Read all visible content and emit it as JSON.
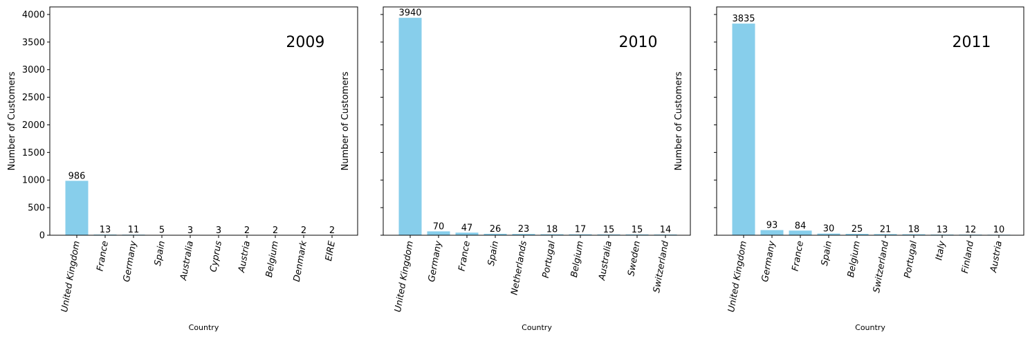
{
  "chart_data": [
    {
      "type": "bar",
      "annotation": "2009",
      "xlabel": "Country",
      "ylabel": "Number of Customers",
      "ylim": [
        0,
        4137
      ],
      "yticks": [
        0,
        500,
        1000,
        1500,
        2000,
        2500,
        3000,
        3500,
        4000
      ],
      "show_ytick_labels": true,
      "bar_color": "#87ceeb",
      "categories": [
        "United Kingdom",
        "France",
        "Germany",
        "Spain",
        "Australia",
        "Cyprus",
        "Austria",
        "Belgium",
        "Denmark",
        "EIRE"
      ],
      "values": [
        986,
        13,
        11,
        5,
        3,
        3,
        2,
        2,
        2,
        2
      ]
    },
    {
      "type": "bar",
      "annotation": "2010",
      "xlabel": "Country",
      "ylabel": "Number of Customers",
      "ylim": [
        0,
        4137
      ],
      "yticks": [
        0,
        500,
        1000,
        1500,
        2000,
        2500,
        3000,
        3500,
        4000
      ],
      "show_ytick_labels": false,
      "bar_color": "#87ceeb",
      "categories": [
        "United Kingdom",
        "Germany",
        "France",
        "Spain",
        "Netherlands",
        "Portugal",
        "Belgium",
        "Australia",
        "Sweden",
        "Switzerland"
      ],
      "values": [
        3940,
        70,
        47,
        26,
        23,
        18,
        17,
        15,
        15,
        14
      ]
    },
    {
      "type": "bar",
      "annotation": "2011",
      "xlabel": "Country",
      "ylabel": "Number of Customers",
      "ylim": [
        0,
        4137
      ],
      "yticks": [
        0,
        500,
        1000,
        1500,
        2000,
        2500,
        3000,
        3500,
        4000
      ],
      "show_ytick_labels": false,
      "bar_color": "#87ceeb",
      "categories": [
        "United Kingdom",
        "Germany",
        "France",
        "Spain",
        "Belgium",
        "Switzerland",
        "Portugal",
        "Italy",
        "Finland",
        "Austria"
      ],
      "values": [
        3835,
        93,
        84,
        30,
        25,
        21,
        18,
        13,
        12,
        10
      ]
    }
  ]
}
